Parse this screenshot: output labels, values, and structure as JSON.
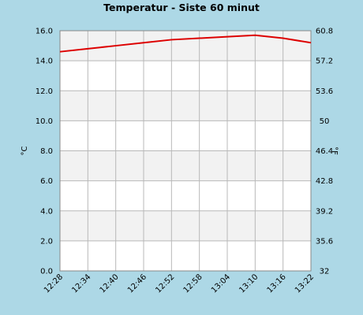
{
  "chart_data": {
    "type": "line",
    "title": "Temperatur - Siste 60 minut",
    "ylabel": "°C",
    "ylabel_right": "°F",
    "x": [
      "12:28",
      "12:34",
      "12:40",
      "12:46",
      "12:52",
      "12:58",
      "13:04",
      "13:10",
      "13:16",
      "13:22"
    ],
    "series": [
      {
        "values": [
          14.6,
          14.8,
          15.0,
          15.2,
          15.4,
          15.5,
          15.6,
          15.7,
          15.5,
          15.2
        ],
        "color": "#dd0000"
      }
    ],
    "ylim": [
      0,
      16
    ],
    "yticks": [
      "0.0",
      "2.0",
      "4.0",
      "6.0",
      "8.0",
      "10.0",
      "12.0",
      "14.0",
      "16.0"
    ],
    "y2lim": [
      32,
      60.8
    ],
    "y2ticks": [
      "32",
      "35.6",
      "39.2",
      "42.8",
      "46.4",
      "50",
      "53.6",
      "57.2",
      "60.8"
    ],
    "grid": true,
    "band_colors": [
      "#ffffff",
      "#f2f2f2"
    ]
  }
}
